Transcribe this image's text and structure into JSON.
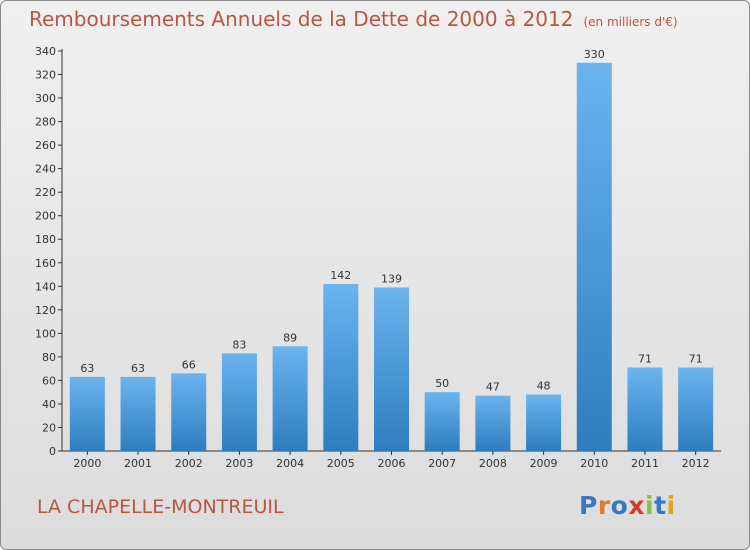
{
  "header": {
    "title": "Remboursements Annuels de la Dette de 2000 à 2012",
    "unit": "(en milliers d'€)"
  },
  "town": "LA CHAPELLE-MONTREUIL",
  "logo": {
    "text": "Proxiti",
    "letter_colors": [
      "#3a77c2",
      "#e0792a",
      "#3a77c2",
      "#d93b2a",
      "#8cbf3c",
      "#3a77c2",
      "#e0a21f"
    ]
  },
  "colors": {
    "bar_top": "#6ab4ef",
    "bar_bottom": "#2e7dc0",
    "title": "#b9563f",
    "axis": "#333333"
  },
  "chart_data": {
    "type": "bar",
    "title": "Remboursements Annuels de la Dette de 2000 à 2012",
    "xlabel": "",
    "ylabel": "",
    "categories": [
      "2000",
      "2001",
      "2002",
      "2003",
      "2004",
      "2005",
      "2006",
      "2007",
      "2008",
      "2009",
      "2010",
      "2011",
      "2012"
    ],
    "values": [
      63,
      63,
      66,
      83,
      89,
      142,
      139,
      50,
      47,
      48,
      330,
      71,
      71
    ],
    "ylim": [
      0,
      340
    ],
    "yticks": [
      0,
      20,
      40,
      60,
      80,
      100,
      120,
      140,
      160,
      180,
      200,
      220,
      240,
      260,
      280,
      300,
      320,
      340
    ],
    "grid": false,
    "legend": "none"
  }
}
